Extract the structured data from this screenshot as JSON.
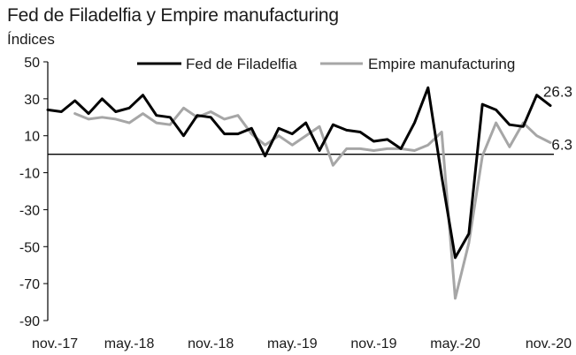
{
  "chart_data": {
    "type": "line",
    "title": "Fed de Filadelfia y Empire manufacturing",
    "ylabel": "Índices",
    "xlabel": "",
    "ylim": [
      -90,
      50
    ],
    "yticks": [
      50,
      30,
      10,
      -10,
      -30,
      -50,
      -70,
      -90
    ],
    "ytick_labels": [
      "50",
      "30",
      "10",
      "-10",
      "-30",
      "-50",
      "-70",
      "-90"
    ],
    "xtick_labels": [
      "nov.-17",
      "may.-18",
      "nov.-18",
      "may.-19",
      "nov.-19",
      "may.-20",
      "nov.-20"
    ],
    "xtick_index": [
      0,
      6,
      12,
      18,
      24,
      30,
      36
    ],
    "legend_position": "top-right",
    "grid": false,
    "series": [
      {
        "name": "Fed de Filadelfia",
        "color": "#000000",
        "values": [
          24,
          23,
          29,
          22,
          30,
          23,
          25,
          32,
          21,
          20,
          10,
          21,
          20,
          11,
          11,
          14,
          -1,
          14,
          11,
          17,
          2,
          16,
          13,
          12,
          7,
          8,
          3,
          17,
          36,
          -12,
          -56,
          -43,
          27,
          24,
          16,
          15,
          32,
          26.3
        ],
        "end_label": "26.3"
      },
      {
        "name": "Empire manufacturing",
        "color": "#a6a6a6",
        "values": [
          22,
          19,
          20,
          19,
          17,
          22,
          17,
          16,
          25,
          20,
          23,
          19,
          21,
          11,
          5,
          10,
          5,
          10,
          15,
          -6,
          3,
          3,
          2,
          3,
          3,
          2,
          5,
          12,
          -78,
          -48,
          -1,
          17,
          4,
          17,
          10,
          6.3
        ],
        "x_offset": 2,
        "end_label": "6.3"
      }
    ]
  }
}
